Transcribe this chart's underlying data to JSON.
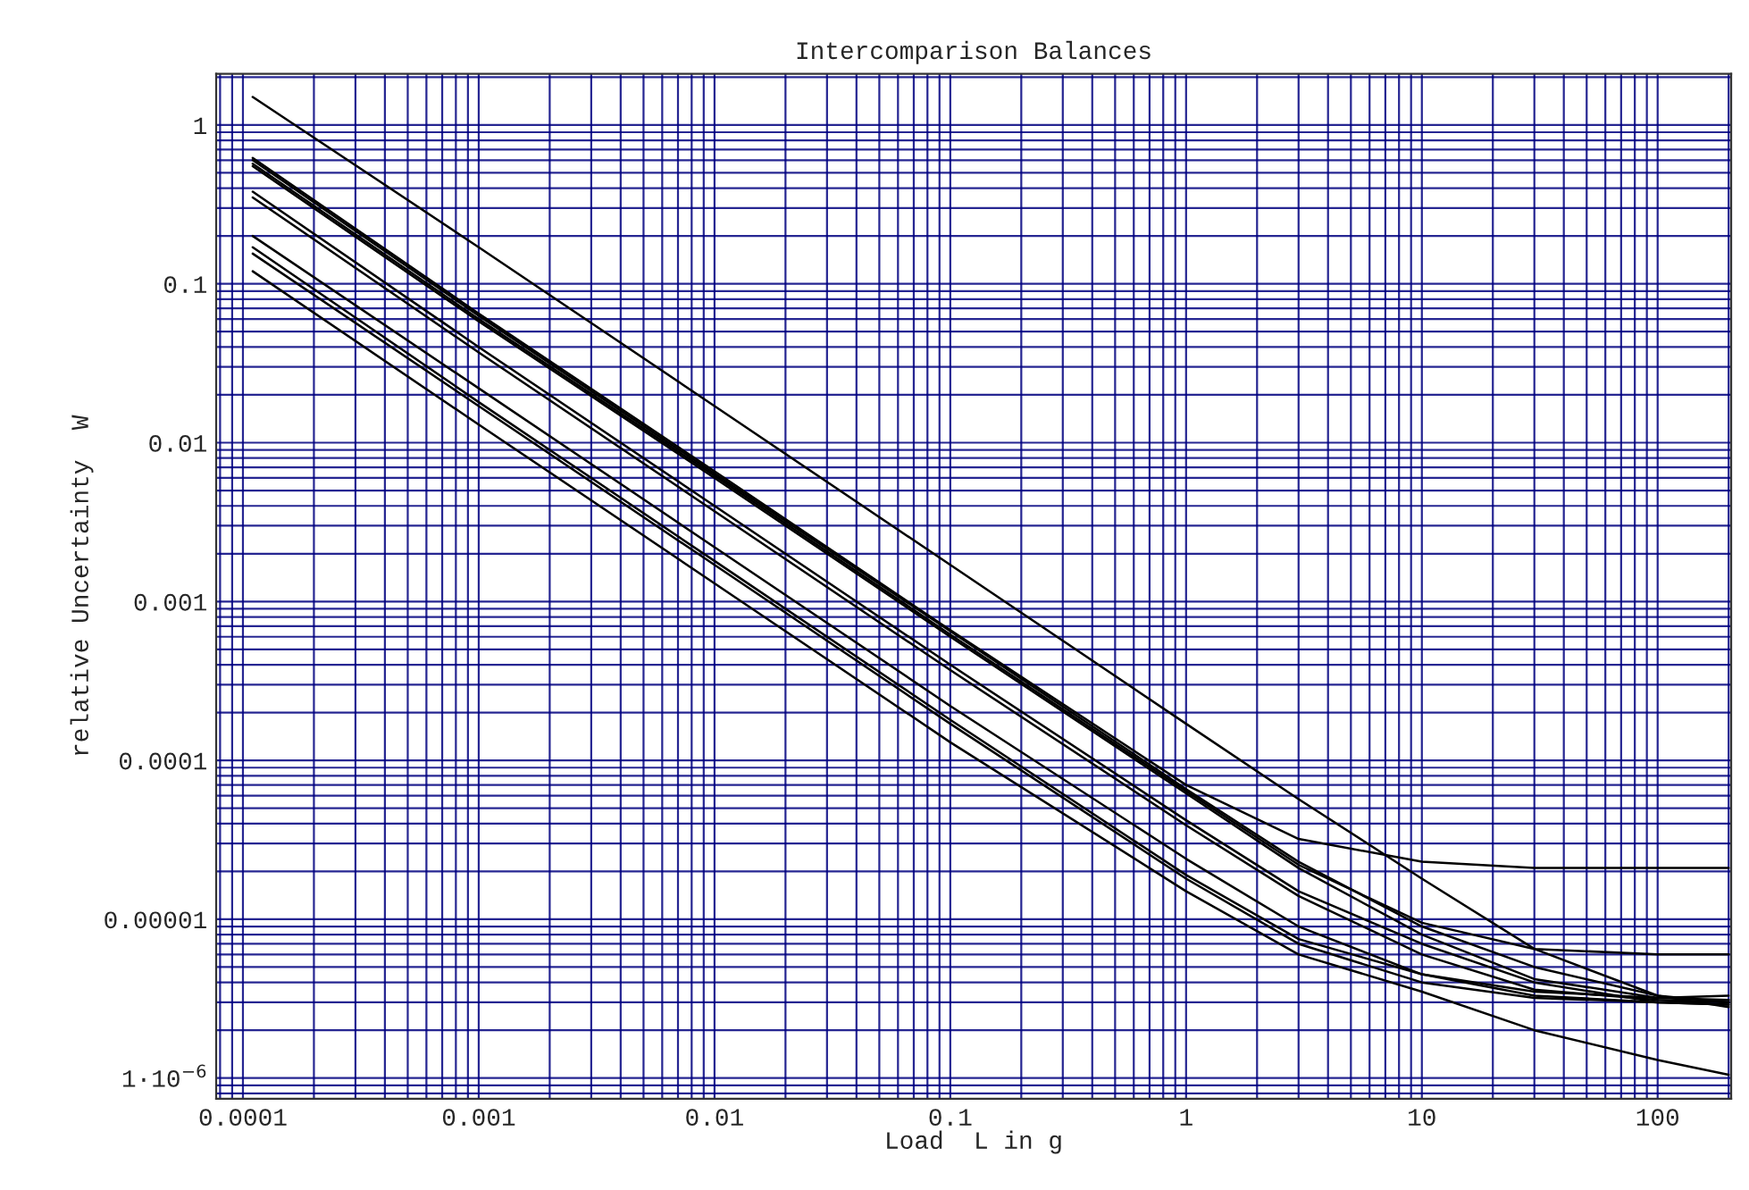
{
  "chart_data": {
    "type": "line",
    "title": "Intercomparison Balances",
    "xlabel": "Load  L in g",
    "ylabel": "relative Uncertainty  W",
    "log": "xy",
    "grid": true,
    "marker": "none",
    "line_style": "solid",
    "x": [
      0.00011,
      0.001,
      0.01,
      0.1,
      1,
      3,
      10,
      30,
      100,
      200
    ],
    "xlim": [
      7.7e-05,
      205
    ],
    "ylim": [
      7.4e-07,
      2.1
    ],
    "xticks": [
      0.0001,
      0.001,
      0.01,
      0.1,
      1,
      10,
      100
    ],
    "yticks": [
      {
        "value": 1,
        "label": "1"
      },
      {
        "value": 0.1,
        "label": "0.1"
      },
      {
        "value": 0.01,
        "label": "0.01"
      },
      {
        "value": 0.001,
        "label": "0.001"
      },
      {
        "value": 0.0001,
        "label": "0.0001"
      },
      {
        "value": 1e-05,
        "label": "0.00001"
      },
      {
        "value": 1e-06,
        "label": "1·10$^{−6}$"
      }
    ],
    "series": [
      {
        "color": "#000000",
        "values": [
          1.5,
          0.17,
          0.017,
          0.0017,
          0.00017,
          5.7e-05,
          1.8e-05,
          6.5e-06,
          3.3e-06,
          2.8e-06
        ]
      },
      {
        "color": "#000000",
        "values": [
          0.62,
          0.065,
          0.0066,
          0.00066,
          7e-05,
          3.2e-05,
          2.3e-05,
          2.1e-05,
          2.1e-05,
          2.1e-05
        ]
      },
      {
        "color": "#000000",
        "values": [
          0.6,
          0.063,
          0.0064,
          0.00065,
          6.6e-05,
          2.3e-05,
          9e-06,
          5e-06,
          3.3e-06,
          3e-06
        ]
      },
      {
        "color": "#000000",
        "values": [
          0.57,
          0.06,
          0.0062,
          0.00062,
          6.4e-05,
          2.2e-05,
          9.5e-06,
          6.5e-06,
          6e-06,
          6e-06
        ]
      },
      {
        "color": "#000000",
        "values": [
          0.55,
          0.058,
          0.006,
          0.0006,
          6.2e-05,
          2.1e-05,
          8e-06,
          4.2e-06,
          3.2e-06,
          3.3e-06
        ]
      },
      {
        "color": "#000000",
        "values": [
          0.38,
          0.04,
          0.004,
          0.0004,
          4.2e-05,
          1.5e-05,
          7e-06,
          4e-06,
          3e-06,
          2.9e-06
        ]
      },
      {
        "color": "#000000",
        "values": [
          0.35,
          0.037,
          0.0037,
          0.00037,
          3.9e-05,
          1.4e-05,
          6e-06,
          3.6e-06,
          3.1e-06,
          3e-06
        ]
      },
      {
        "color": "#000000",
        "values": [
          0.2,
          0.022,
          0.0022,
          0.00022,
          2.4e-05,
          9e-06,
          4.5e-06,
          3.3e-06,
          3e-06,
          3.1e-06
        ]
      },
      {
        "color": "#000000",
        "values": [
          0.17,
          0.018,
          0.0018,
          0.00018,
          1.9e-05,
          7.5e-06,
          4.5e-06,
          3.5e-06,
          3.2e-06,
          3.1e-06
        ]
      },
      {
        "color": "#000000",
        "values": [
          0.155,
          0.017,
          0.0017,
          0.00017,
          1.8e-05,
          7e-06,
          4e-06,
          3.2e-06,
          3e-06,
          2.9e-06
        ]
      },
      {
        "color": "#000000",
        "values": [
          0.12,
          0.013,
          0.0013,
          0.00013,
          1.5e-05,
          6e-06,
          3.5e-06,
          2e-06,
          1.3e-06,
          1.05e-06
        ]
      }
    ]
  }
}
